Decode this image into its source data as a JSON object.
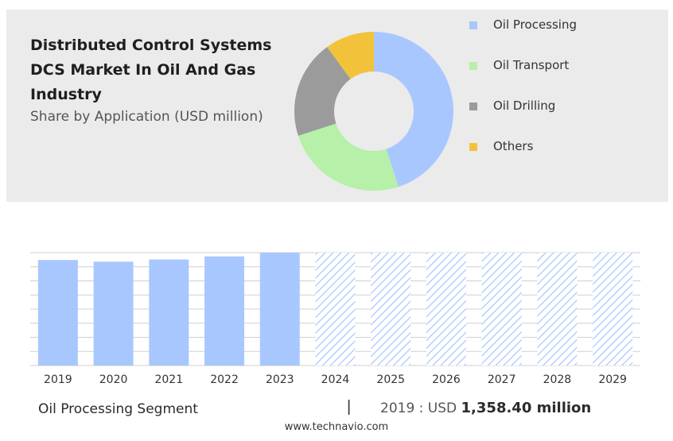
{
  "header": {
    "title": "Distributed Control Systems DCS Market In Oil And Gas Industry",
    "subtitle": "Share by Application (USD million)"
  },
  "footer": {
    "segment_label": "Oil Processing Segment",
    "separator": "|",
    "year_value_prefix": "2019 : USD ",
    "year_value": "1,358.40 million",
    "source": "www.technavio.com"
  },
  "chart_data": [
    {
      "type": "pie",
      "style": "donut",
      "labels": [
        "Oil Processing",
        "Oil Transport",
        "Oil Drilling",
        "Others"
      ],
      "values": [
        45,
        25,
        20,
        10
      ],
      "colors": [
        "#a9c7ff",
        "#b6f0a9",
        "#9b9b9b",
        "#f2c23a"
      ],
      "legend_position": "right"
    },
    {
      "type": "bar",
      "title": "",
      "categories": [
        "2019",
        "2020",
        "2021",
        "2022",
        "2023",
        "2024",
        "2025",
        "2026",
        "2027",
        "2028",
        "2029"
      ],
      "values": [
        1358.4,
        1336,
        1364,
        1404,
        1452,
        null,
        null,
        null,
        null,
        null,
        null
      ],
      "forecast_from": "2024",
      "ylim": [
        0,
        1452
      ],
      "grid": true,
      "colors": {
        "actual": "#a9c7ff",
        "forecast": "#a9c7ff"
      }
    }
  ]
}
